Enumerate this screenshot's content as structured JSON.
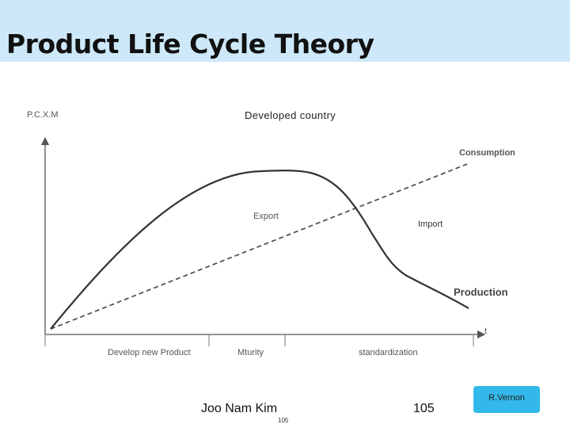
{
  "slide": {
    "title": "Product Life Cycle Theory",
    "footer": {
      "author": "Joo Nam Kim",
      "page_small": "105",
      "page_number": "105",
      "credit": "R.Vernon"
    },
    "theme": {
      "title_bar_color": "#cde8f9",
      "credit_color": "#33b8ea"
    }
  },
  "diagram": {
    "title": "Developed country",
    "y_axis_label": "P.C.X.M",
    "x_axis_label": "t",
    "curves": {
      "consumption_label": "Consumption",
      "production_label": "Production",
      "export_label": "Export",
      "import_label": "Import"
    },
    "stages": [
      "Develop new Product",
      "Mturity",
      "standardization"
    ]
  }
}
